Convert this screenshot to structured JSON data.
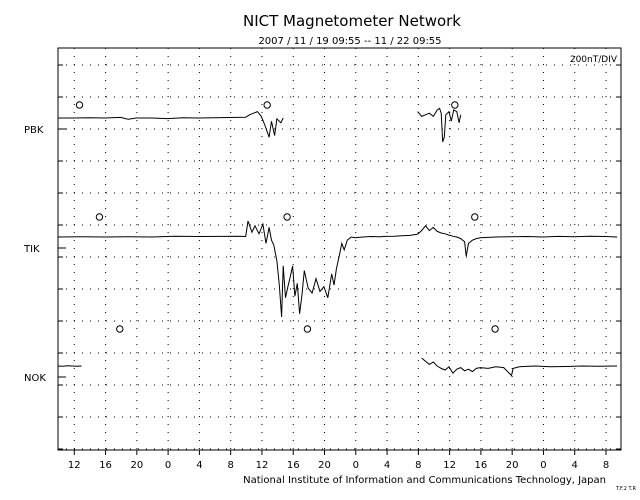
{
  "chart_data": {
    "type": "line",
    "title": "NICT Magnetometer Network",
    "subtitle": "2007 / 11 / 19   09:55 -- 11 / 22   09:55",
    "scale_label": "200nT/DIV",
    "credit": "National Institute of Information and Communications Technology, Japan",
    "credit_small": "T.F.2 T.R",
    "xlabel": "",
    "ylabel": "",
    "x_unit": "hours since 2007-11-19 09:55",
    "xlim": [
      0,
      72
    ],
    "grid": true,
    "tick_labels": [
      "12",
      "16",
      "20",
      "0",
      "4",
      "8",
      "12",
      "16",
      "20",
      "0",
      "4",
      "8",
      "12",
      "16",
      "20",
      "0",
      "4",
      "8"
    ],
    "tick_hours": [
      2.083,
      6.083,
      10.083,
      14.083,
      18.083,
      22.083,
      26.083,
      30.083,
      34.083,
      38.083,
      42.083,
      46.083,
      50.083,
      54.083,
      58.083,
      62.083,
      66.083,
      70.083
    ],
    "stations": [
      "PBK",
      "TIK",
      "NOK"
    ],
    "series": [
      {
        "name": "PBK",
        "local_midnight_hours": [
          2.75,
          26.75,
          50.75
        ],
        "values_nT": [
          [
            0,
            0
          ],
          [
            2,
            0
          ],
          [
            4,
            2
          ],
          [
            6,
            0
          ],
          [
            8,
            4
          ],
          [
            9,
            -8
          ],
          [
            10,
            0
          ],
          [
            12,
            0
          ],
          [
            14,
            -4
          ],
          [
            16,
            1
          ],
          [
            18,
            0
          ],
          [
            20,
            2
          ],
          [
            22,
            3
          ],
          [
            24,
            5
          ],
          [
            24.5,
            20
          ],
          [
            25,
            30
          ],
          [
            25.5,
            40
          ],
          [
            26,
            10
          ],
          [
            26.5,
            -50
          ],
          [
            27,
            -120
          ],
          [
            27.3,
            -20
          ],
          [
            27.7,
            -110
          ],
          [
            28,
            -5
          ],
          [
            28.5,
            -30
          ],
          [
            28.8,
            0
          ],
          null,
          [
            46,
            40
          ],
          [
            46.5,
            10
          ],
          [
            47,
            20
          ],
          [
            47.5,
            30
          ],
          [
            48,
            10
          ],
          [
            48.5,
            50
          ],
          [
            48.8,
            60
          ],
          [
            49,
            30
          ],
          [
            49.2,
            -150
          ],
          [
            49.4,
            -120
          ],
          [
            49.6,
            20
          ],
          [
            50,
            40
          ],
          [
            50.3,
            -20
          ],
          [
            50.6,
            50
          ],
          [
            51,
            40
          ],
          [
            51.3,
            -30
          ],
          [
            51.5,
            20
          ]
        ]
      },
      {
        "name": "TIK",
        "local_midnight_hours": [
          5.3,
          29.3,
          53.3
        ],
        "values_nT": [
          [
            0,
            0
          ],
          [
            3,
            1
          ],
          [
            6,
            0
          ],
          [
            9,
            2
          ],
          [
            12,
            0
          ],
          [
            15,
            5
          ],
          [
            18,
            3
          ],
          [
            21,
            4
          ],
          [
            23,
            5
          ],
          [
            24,
            3
          ],
          [
            24.3,
            100
          ],
          [
            24.8,
            30
          ],
          [
            25.2,
            70
          ],
          [
            25.7,
            20
          ],
          [
            26.2,
            80
          ],
          [
            26.6,
            -40
          ],
          [
            27,
            60
          ],
          [
            27.3,
            -20
          ],
          [
            27.6,
            -50
          ],
          [
            28,
            -150
          ],
          [
            28.3,
            -300
          ],
          [
            28.6,
            -500
          ],
          [
            28.8,
            -180
          ],
          [
            29.1,
            -380
          ],
          [
            29.4,
            -310
          ],
          [
            29.7,
            -250
          ],
          [
            30,
            -180
          ],
          [
            30.3,
            -370
          ],
          [
            30.6,
            -290
          ],
          [
            30.9,
            -480
          ],
          [
            31.2,
            -360
          ],
          [
            31.5,
            -210
          ],
          [
            32,
            -320
          ],
          [
            32.5,
            -350
          ],
          [
            33,
            -260
          ],
          [
            33.5,
            -340
          ],
          [
            34,
            -310
          ],
          [
            34.5,
            -380
          ],
          [
            35,
            -230
          ],
          [
            35.3,
            -300
          ],
          [
            35.6,
            -200
          ],
          [
            36,
            -110
          ],
          [
            36.3,
            -40
          ],
          [
            36.6,
            -80
          ],
          [
            37,
            -20
          ],
          [
            37.5,
            0
          ],
          [
            38,
            -5
          ],
          [
            39,
            0
          ],
          [
            40,
            3
          ],
          [
            41,
            2
          ],
          [
            42,
            4
          ],
          [
            43,
            5
          ],
          [
            44,
            8
          ],
          [
            45,
            10
          ],
          [
            46,
            18
          ],
          [
            46.5,
            40
          ],
          [
            47,
            70
          ],
          [
            47.5,
            40
          ],
          [
            48,
            60
          ],
          [
            48.5,
            35
          ],
          [
            49,
            25
          ],
          [
            49.5,
            20
          ],
          [
            50,
            12
          ],
          [
            50.5,
            5
          ],
          [
            51,
            0
          ],
          [
            51.5,
            -10
          ],
          [
            52,
            -30
          ],
          [
            52.2,
            -120
          ],
          [
            52.5,
            -40
          ],
          [
            53,
            -20
          ],
          [
            53.5,
            -10
          ],
          [
            54,
            -5
          ],
          [
            56,
            0
          ],
          [
            58,
            2
          ],
          [
            60,
            3
          ],
          [
            62,
            0
          ],
          [
            64,
            4
          ],
          [
            66,
            2
          ],
          [
            68,
            5
          ],
          [
            70,
            3
          ],
          [
            71.5,
            0
          ]
        ]
      },
      {
        "name": "NOK",
        "local_midnight_hours": [
          7.9,
          31.9,
          55.9
        ],
        "values_nT": [
          [
            0,
            0
          ],
          [
            0.6,
            -1
          ],
          [
            1.2,
            1
          ],
          [
            1.8,
            0
          ],
          [
            2.4,
            -2
          ],
          [
            3.0,
            0
          ],
          null,
          [
            46.5,
            50
          ],
          [
            47,
            30
          ],
          [
            47.5,
            10
          ],
          [
            48,
            25
          ],
          [
            48.5,
            0
          ],
          [
            49,
            -15
          ],
          [
            49.5,
            -25
          ],
          [
            50,
            -5
          ],
          [
            50.5,
            -45
          ],
          [
            51,
            -20
          ],
          [
            51.5,
            -10
          ],
          [
            52,
            -30
          ],
          [
            52.5,
            -20
          ],
          [
            53,
            -35
          ],
          [
            53.5,
            -15
          ],
          [
            54,
            -10
          ],
          [
            55,
            -15
          ],
          [
            56,
            -5
          ],
          [
            57,
            -10
          ],
          [
            58,
            -60
          ],
          [
            58.2,
            -15
          ],
          [
            59,
            -5
          ],
          [
            61,
            0
          ],
          [
            63,
            -5
          ],
          [
            65,
            -3
          ],
          [
            67,
            0
          ],
          [
            69,
            -2
          ],
          [
            71.5,
            0
          ]
        ]
      }
    ]
  }
}
